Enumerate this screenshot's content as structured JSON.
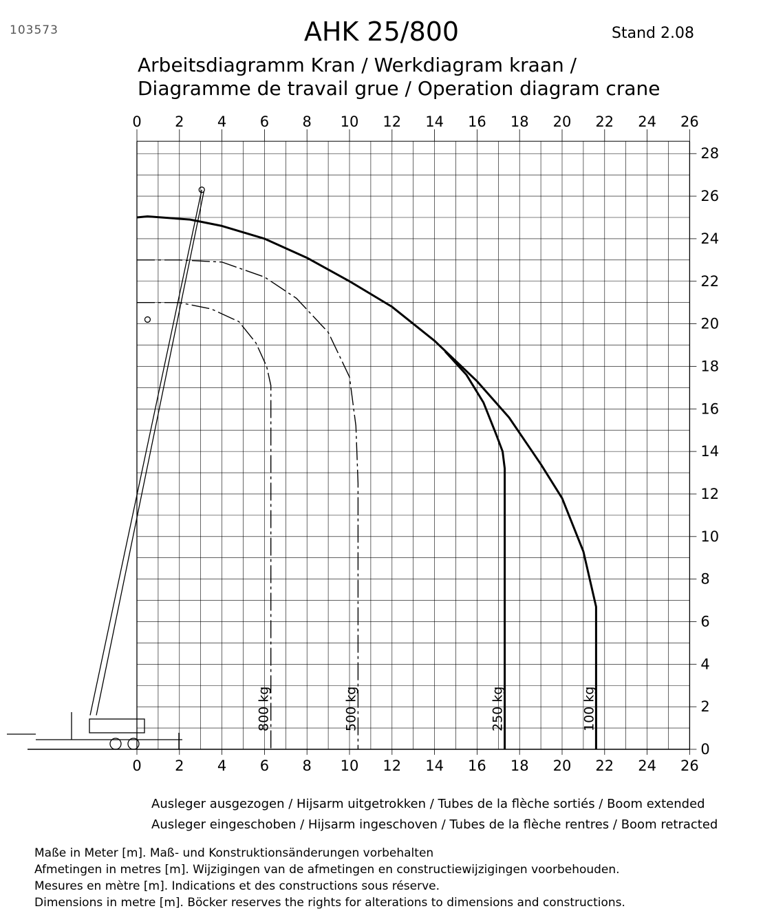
{
  "header": {
    "doc_number": "103573",
    "title": "AHK 25/800",
    "stand": "Stand 2.08",
    "subtitle_1": "Arbeitsdiagramm Kran / Werkdiagram kraan /",
    "subtitle_2": "Diagramme de travail grue / Operation diagram crane"
  },
  "chart_data": {
    "type": "line",
    "xlim": [
      0,
      26
    ],
    "ylim": [
      0,
      28
    ],
    "x_ticks": [
      0,
      2,
      4,
      6,
      8,
      10,
      12,
      14,
      16,
      18,
      20,
      22,
      24,
      26
    ],
    "y_ticks": [
      0,
      2,
      4,
      6,
      8,
      10,
      12,
      14,
      16,
      18,
      20,
      22,
      24,
      26,
      28
    ],
    "x_tick_labels_position": "top and bottom",
    "y_tick_labels_position": "right",
    "grid": true,
    "series": [
      {
        "name": "Ausleger ausgezogen / Hijsarm uitgetrokken / Tubes de la flèche sortiés / Boom extended",
        "style": "solid-thick",
        "label": "100 kg",
        "points": [
          [
            0,
            25
          ],
          [
            0.5,
            25.05
          ],
          [
            2.5,
            24.9
          ],
          [
            4,
            24.6
          ],
          [
            6,
            24.0
          ],
          [
            8,
            23.1
          ],
          [
            10,
            22.0
          ],
          [
            12,
            20.8
          ],
          [
            14,
            19.2
          ],
          [
            16,
            17.3
          ],
          [
            17.5,
            15.6
          ],
          [
            19,
            13.4
          ],
          [
            20,
            11.8
          ],
          [
            21,
            9.3
          ],
          [
            21.6,
            6.7
          ],
          [
            21.6,
            0
          ]
        ]
      },
      {
        "name": "Ausleger eingeschoben / Hijsarm ingeschoven / Tubes de la flèche rentres / Boom retracted",
        "style": "dash-dot",
        "label": "500 kg",
        "points": [
          [
            0,
            23
          ],
          [
            2,
            23.0
          ],
          [
            4,
            22.9
          ],
          [
            6,
            22.2
          ],
          [
            7.5,
            21.2
          ],
          [
            9,
            19.6
          ],
          [
            10,
            17.5
          ],
          [
            10.3,
            15.2
          ],
          [
            10.4,
            12.5
          ],
          [
            10.4,
            0
          ]
        ]
      },
      {
        "name": "Ausleger eingeschoben / Hijsarm ingeschoven / Tubes de la flèche rentres / Boom retracted",
        "style": "dash-dot",
        "label": "800 kg",
        "points": [
          [
            0,
            21
          ],
          [
            2,
            21.0
          ],
          [
            3.5,
            20.7
          ],
          [
            4.8,
            20.1
          ],
          [
            5.6,
            19.1
          ],
          [
            6.1,
            18.0
          ],
          [
            6.3,
            17.1
          ],
          [
            6.3,
            0
          ]
        ]
      },
      {
        "name": "",
        "style": "solid-thick",
        "label": "250 kg",
        "points": [
          [
            14.5,
            18.7
          ],
          [
            15.5,
            17.6
          ],
          [
            16.3,
            16.3
          ],
          [
            16.9,
            14.8
          ],
          [
            17.2,
            14.0
          ],
          [
            17.3,
            13.2
          ],
          [
            17.3,
            0
          ]
        ]
      }
    ]
  },
  "legend": {
    "extended": "Ausleger ausgezogen / Hijsarm uitgetrokken / Tubes de la flèche sortiés / Boom extended",
    "retracted": "Ausleger eingeschoben / Hijsarm ingeschoven / Tubes de la flèche rentres / Boom retracted"
  },
  "notes": {
    "line_1": "Maße in Meter [m]. Maß- und Konstruktionsänderungen vorbehalten",
    "line_2": "Afmetingen in metres [m]. Wijzigingen van de afmetingen en constructiewijzigingen voorbehouden.",
    "line_3": "Mesures en mètre [m]. Indications et des constructions sous réserve.",
    "line_4": "Dimensions in metre [m]. Böcker reserves the rights for alterations to dimensions and constructions."
  }
}
